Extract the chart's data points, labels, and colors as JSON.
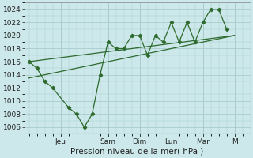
{
  "title": "",
  "xlabel": "Pression niveau de la mer( hPa )",
  "ylabel": "",
  "background_color": "#cce8ea",
  "plot_bg_color": "#cce8ea",
  "grid_color": "#aacccc",
  "line_color": "#2d6a2d",
  "ylim": [
    1005,
    1025
  ],
  "yticks": [
    1006,
    1008,
    1010,
    1012,
    1014,
    1016,
    1018,
    1020,
    1022,
    1024
  ],
  "day_labels": [
    "Jeu",
    "Sam",
    "Dim",
    "Lun",
    "Mar",
    "M"
  ],
  "day_positions": [
    2.0,
    5.0,
    7.0,
    9.0,
    11.0,
    13.0
  ],
  "xlim": [
    -0.3,
    14.0
  ],
  "series1_x": [
    0,
    0.5,
    1.0,
    1.5,
    2.5,
    3.0,
    3.5,
    4.0,
    4.5,
    5.0,
    5.5,
    6.0,
    6.5,
    7.0,
    7.5,
    8.0,
    8.5,
    9.0,
    9.5,
    10.0,
    10.5,
    11.0,
    11.5,
    12.0,
    12.5
  ],
  "series1_y": [
    1016,
    1015,
    1013,
    1012,
    1009,
    1008,
    1006,
    1008,
    1014,
    1019,
    1018,
    1018,
    1020,
    1020,
    1017,
    1020,
    1019,
    1022,
    1019,
    1022,
    1019,
    1022,
    1024,
    1024,
    1021
  ],
  "series2_x": [
    0,
    13.0
  ],
  "series2_y": [
    1016,
    1020
  ],
  "series3_x": [
    0,
    13.0
  ],
  "series3_y": [
    1013.5,
    1020
  ],
  "xlabel_fontsize": 7.5,
  "tick_labelsize": 6.5
}
